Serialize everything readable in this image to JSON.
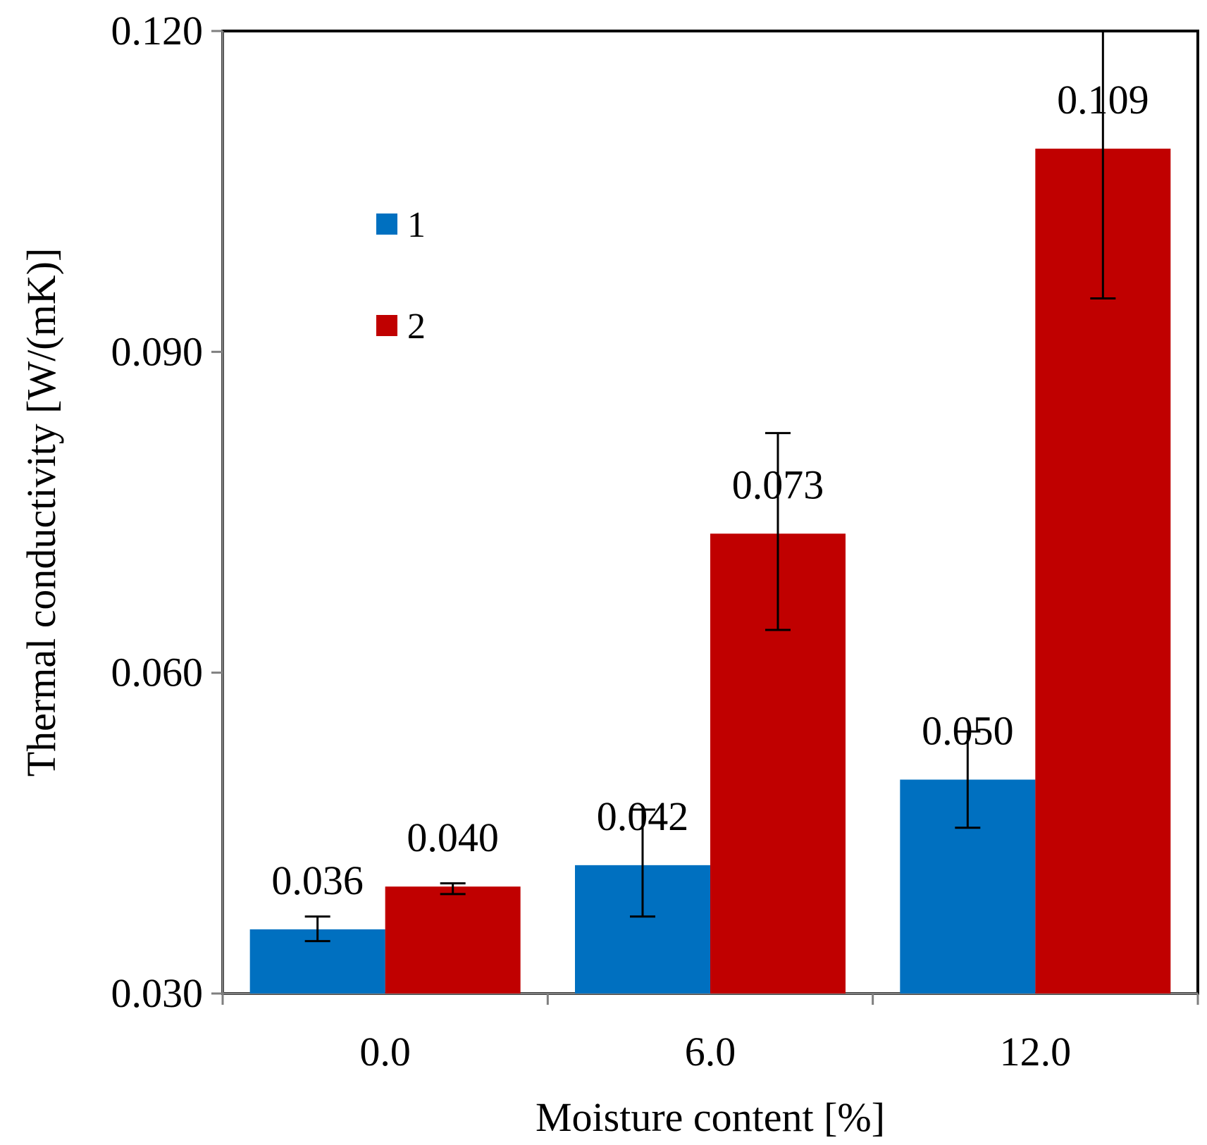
{
  "chart_data": {
    "type": "bar",
    "title": "",
    "xlabel": "Moisture content [%]",
    "ylabel": "Thermal conductivity [W/(mK)]",
    "categories": [
      "0.0",
      "6.0",
      "12.0"
    ],
    "ylim": [
      0.03,
      0.12
    ],
    "yticks": [
      0.03,
      0.06,
      0.09,
      0.12
    ],
    "ytick_labels": [
      "0.030",
      "0.060",
      "0.090",
      "0.120"
    ],
    "grid": false,
    "legend_position": "upper-left",
    "series": [
      {
        "name": "1",
        "color": "#0070c0",
        "values": [
          0.036,
          0.042,
          0.05
        ],
        "labels": [
          "0.036",
          "0.042",
          "0.050"
        ],
        "error_low": [
          0.0349,
          0.0372,
          0.0455
        ],
        "error_high": [
          0.0372,
          0.0472,
          0.0545
        ]
      },
      {
        "name": "2",
        "color": "#c00000",
        "values": [
          0.04,
          0.073,
          0.109
        ],
        "labels": [
          "0.040",
          "0.073",
          "0.109"
        ],
        "error_low": [
          0.0393,
          0.064,
          0.095
        ],
        "error_high": [
          0.0403,
          0.0824,
          0.12
        ]
      }
    ]
  }
}
